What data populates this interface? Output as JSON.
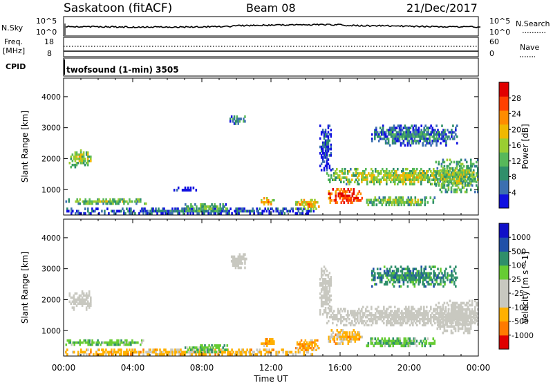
{
  "header": {
    "title": "Saskatoon (fitACF)",
    "beam": "Beam 08",
    "date": "21/Dec/2017"
  },
  "sky_panel": {
    "left_label": "N.Sky",
    "right_label": "N.Search",
    "left_ticks": [
      "10^5",
      "10^0"
    ],
    "right_ticks": [
      "10^5",
      "10^0"
    ]
  },
  "freq_panel": {
    "left_label_line1": "Freq.",
    "left_label_line2": "[MHz]",
    "left_ticks": [
      "18",
      "8"
    ],
    "right_label": "Nave",
    "right_ticks": [
      "60",
      "0"
    ]
  },
  "cpid_panel": {
    "label": "CPID",
    "text": "twofsound (1-min) 3505"
  },
  "colors": {
    "power_scale": [
      "#1010e0",
      "#3c6fb0",
      "#2f8f6a",
      "#57b85a",
      "#9acd32",
      "#f0b800",
      "#ff8c00",
      "#ff4000",
      "#e00000"
    ],
    "velocity_scale": [
      "#e00000",
      "#ff7a00",
      "#ffb000",
      "#c8c8c0",
      "#c8c8c0",
      "#66cc33",
      "#2f8f6a",
      "#2050a8",
      "#1010c8"
    ]
  },
  "chart_data": [
    {
      "type": "heatmap",
      "name": "power",
      "ylabel": "Slant Range [km]",
      "xlabel": "Time UT",
      "x_ticks": [
        "00:00",
        "04:00",
        "08:00",
        "12:00",
        "16:00",
        "20:00",
        "00:00"
      ],
      "y_ticks": [
        1000,
        2000,
        3000,
        4000
      ],
      "ylim": [
        180,
        4600
      ],
      "colorbar_label": "Power [dB]",
      "colorbar_ticks": [
        "4",
        "8",
        "12",
        "16",
        "20",
        "24",
        "28"
      ],
      "blobs": [
        {
          "t0": 0.3,
          "t1": 1.6,
          "r0": 1700,
          "r1": 2300,
          "level": 0.55
        },
        {
          "t0": 0.1,
          "t1": 4.8,
          "r0": 520,
          "r1": 720,
          "level": 0.5
        },
        {
          "t0": 0.0,
          "t1": 14.5,
          "r0": 200,
          "r1": 420,
          "level": 0.25
        },
        {
          "t0": 6.2,
          "t1": 7.7,
          "r0": 950,
          "r1": 1100,
          "level": 0.1
        },
        {
          "t0": 7.0,
          "t1": 9.5,
          "r0": 280,
          "r1": 560,
          "level": 0.45
        },
        {
          "t0": 9.6,
          "t1": 10.6,
          "r0": 3100,
          "r1": 3400,
          "level": 0.35
        },
        {
          "t0": 11.4,
          "t1": 12.2,
          "r0": 500,
          "r1": 760,
          "level": 0.75
        },
        {
          "t0": 13.4,
          "t1": 14.8,
          "r0": 350,
          "r1": 700,
          "level": 0.7
        },
        {
          "t0": 14.8,
          "t1": 15.5,
          "r0": 1600,
          "r1": 3100,
          "level": 0.2
        },
        {
          "t0": 15.2,
          "t1": 24.0,
          "r0": 1150,
          "r1": 1700,
          "level": 0.55
        },
        {
          "t0": 15.3,
          "t1": 17.3,
          "r0": 550,
          "r1": 1050,
          "level": 0.95
        },
        {
          "t0": 17.5,
          "t1": 21.5,
          "r0": 480,
          "r1": 780,
          "level": 0.5
        },
        {
          "t0": 17.8,
          "t1": 22.8,
          "r0": 2400,
          "r1": 3100,
          "level": 0.3
        },
        {
          "t0": 21.5,
          "t1": 24.0,
          "r0": 900,
          "r1": 2000,
          "level": 0.5
        }
      ]
    },
    {
      "type": "heatmap",
      "name": "velocity",
      "ylabel": "Slant Range [km]",
      "xlabel": "Time UT",
      "x_ticks": [
        "00:00",
        "04:00",
        "08:00",
        "12:00",
        "16:00",
        "20:00",
        "00:00"
      ],
      "y_ticks": [
        1000,
        2000,
        3000,
        4000
      ],
      "ylim": [
        180,
        4600
      ],
      "colorbar_label": "Velocity [m s^-1]",
      "colorbar_ticks": [
        "1000",
        "500",
        "100",
        "25",
        "-25",
        "-100",
        "-500",
        "-1000"
      ],
      "blobs": [
        {
          "t0": 0.3,
          "t1": 1.6,
          "r0": 1650,
          "r1": 2300,
          "level": 0.45
        },
        {
          "t0": 0.1,
          "t1": 4.8,
          "r0": 520,
          "r1": 720,
          "level": 0.62
        },
        {
          "t0": 0.0,
          "t1": 14.5,
          "r0": 200,
          "r1": 420,
          "level": 0.3
        },
        {
          "t0": 7.0,
          "t1": 9.5,
          "r0": 280,
          "r1": 560,
          "level": 0.62
        },
        {
          "t0": 9.6,
          "t1": 10.6,
          "r0": 3000,
          "r1": 3500,
          "level": 0.45
        },
        {
          "t0": 11.4,
          "t1": 12.2,
          "r0": 480,
          "r1": 760,
          "level": 0.25
        },
        {
          "t0": 13.4,
          "t1": 14.8,
          "r0": 350,
          "r1": 720,
          "level": 0.25
        },
        {
          "t0": 14.8,
          "t1": 15.5,
          "r0": 1500,
          "r1": 3100,
          "level": 0.45
        },
        {
          "t0": 15.2,
          "t1": 24.0,
          "r0": 1150,
          "r1": 1800,
          "level": 0.45
        },
        {
          "t0": 15.3,
          "t1": 17.3,
          "r0": 550,
          "r1": 1050,
          "level": 0.3
        },
        {
          "t0": 17.5,
          "t1": 21.5,
          "r0": 480,
          "r1": 780,
          "level": 0.62
        },
        {
          "t0": 17.8,
          "t1": 22.8,
          "r0": 2400,
          "r1": 3100,
          "level": 0.72
        },
        {
          "t0": 21.5,
          "t1": 24.0,
          "r0": 900,
          "r1": 2000,
          "level": 0.45
        }
      ]
    }
  ]
}
